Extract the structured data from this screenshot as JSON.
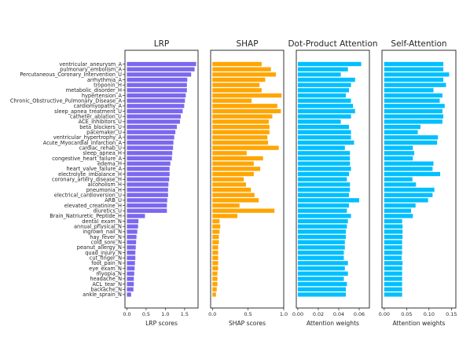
{
  "chart_data": {
    "type": "bar",
    "orientation": "horizontal",
    "categories": [
      "ventricular_aneurysm_A",
      "pulmonary_embolism_A",
      "Percutaneous_Coronary_Intervention_U",
      "arrhythmia_A",
      "troponin_H",
      "metabolic_disorder_H",
      "hypertension_A",
      "Chronic_Obstructive_Pulmonary_Disease_A",
      "cardiomyopathy_A",
      "sleep_apnea_treatment_U",
      "catheter_ablation_U",
      "ACE_inhibitors_U",
      "beta_blockers_U",
      "pacemaker_U",
      "ventricular_hypertrophy_A",
      "Acute_Myocardial_Infarction_A",
      "cardiac_rehab_U",
      "sleep_apnea_H",
      "congestive_heart_failure_A",
      "edema_H",
      "heart_valve_failure_A",
      "electrolyte_imbalance_H",
      "coronary_artery_disease_H",
      "alcoholism_H",
      "pneumonia_H",
      "electrical_cardioversion_U",
      "ARB_U",
      "elevated_creatinine_H",
      "diuretics_U",
      "Brain_Natriuretic_Peptide_H",
      "dental_exam_N",
      "annual_physical_N",
      "ingrown_nail_N",
      "hay_fever_N",
      "cold_sore_N",
      "peanut_allergy_N",
      "quad_injury_N",
      "cut_finger_N",
      "foot_pain_N",
      "eye_exam_N",
      "myopia_N",
      "headache_N",
      "ACL_tear_N",
      "backache_N",
      "ankle_sprain_N"
    ],
    "panels": [
      {
        "title": "LRP",
        "xlabel": "LRP scores",
        "color": "#7b68ee",
        "xlim": [
          -0.05,
          1.85
        ],
        "xticks": [
          0.0,
          0.5,
          1.0,
          1.5
        ],
        "xtick_labels": [
          "0.0",
          "0.5",
          "1.0",
          "1.5"
        ],
        "values": [
          1.8,
          1.76,
          1.67,
          1.57,
          1.56,
          1.56,
          1.53,
          1.51,
          1.49,
          1.45,
          1.4,
          1.38,
          1.3,
          1.26,
          1.23,
          1.21,
          1.2,
          1.18,
          1.17,
          1.13,
          1.11,
          1.11,
          1.1,
          1.08,
          1.07,
          1.07,
          1.05,
          1.04,
          1.04,
          0.47,
          0.3,
          0.29,
          0.27,
          0.25,
          0.24,
          0.23,
          0.22,
          0.22,
          0.21,
          0.2,
          0.19,
          0.18,
          0.18,
          0.17,
          0.11
        ]
      },
      {
        "title": "SHAP",
        "xlabel": "SHAP scores",
        "color": "#ffa500",
        "xlim": [
          -0.025,
          1.0
        ],
        "xticks": [
          0.0,
          0.5,
          1.0
        ],
        "xtick_labels": [
          "0.0",
          "0.5",
          "1.0"
        ],
        "values": [
          0.69,
          0.82,
          0.89,
          0.74,
          0.66,
          0.69,
          0.97,
          0.55,
          0.91,
          0.96,
          0.84,
          0.79,
          0.8,
          0.8,
          0.77,
          0.78,
          0.93,
          0.48,
          0.71,
          0.58,
          0.67,
          0.58,
          0.44,
          0.47,
          0.54,
          0.59,
          0.65,
          0.38,
          0.87,
          0.35,
          0.1,
          0.11,
          0.1,
          0.09,
          0.09,
          0.08,
          0.08,
          0.08,
          0.08,
          0.08,
          0.07,
          0.07,
          0.07,
          0.06,
          0.05
        ]
      },
      {
        "title": "Dot-Product Attention",
        "xlabel": "Attention weights",
        "color": "#00bfff",
        "xlim": [
          -0.0015,
          0.07
        ],
        "xticks": [
          0.0,
          0.02,
          0.04,
          0.06
        ],
        "xtick_labels": [
          "0.00",
          "0.02",
          "0.04",
          "0.06"
        ],
        "values": [
          0.062,
          0.049,
          0.042,
          0.056,
          0.052,
          0.05,
          0.047,
          0.052,
          0.054,
          0.056,
          0.052,
          0.042,
          0.05,
          0.052,
          0.052,
          0.055,
          0.046,
          0.051,
          0.051,
          0.051,
          0.052,
          0.05,
          0.048,
          0.051,
          0.051,
          0.05,
          0.06,
          0.05,
          0.048,
          0.052,
          0.049,
          0.048,
          0.047,
          0.047,
          0.046,
          0.046,
          0.045,
          0.045,
          0.049,
          0.046,
          0.049,
          0.045,
          0.048,
          0.047,
          0.047
        ]
      },
      {
        "title": "Self-Attention",
        "xlabel": "Attention weights",
        "color": "#00bfff",
        "xlim": [
          -0.005,
          0.16
        ],
        "xticks": [
          0.0,
          0.05,
          0.1,
          0.15
        ],
        "xtick_labels": [
          "0.00",
          "0.05",
          "0.10",
          "0.15"
        ],
        "values": [
          0.132,
          0.132,
          0.145,
          0.132,
          0.138,
          0.11,
          0.13,
          0.124,
          0.135,
          0.13,
          0.132,
          0.13,
          0.081,
          0.075,
          0.12,
          0.118,
          0.064,
          0.067,
          0.064,
          0.11,
          0.108,
          0.125,
          0.063,
          0.071,
          0.112,
          0.108,
          0.098,
          0.07,
          0.06,
          0.064,
          0.04,
          0.041,
          0.041,
          0.041,
          0.04,
          0.04,
          0.04,
          0.039,
          0.041,
          0.04,
          0.04,
          0.04,
          0.04,
          0.04,
          0.04
        ]
      }
    ]
  }
}
